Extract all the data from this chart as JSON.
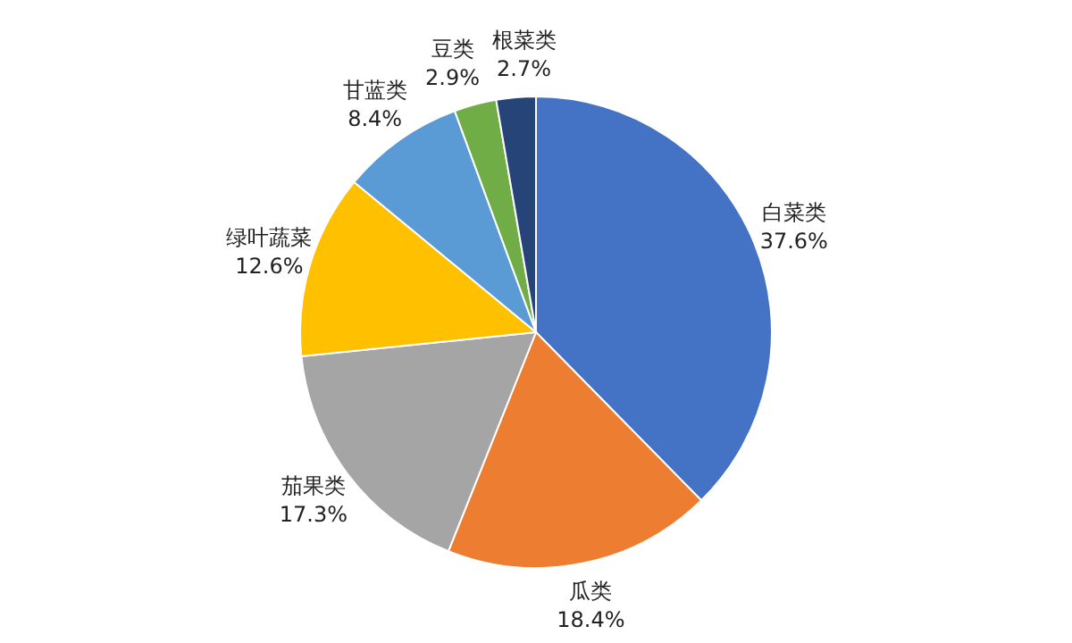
{
  "chart_data": {
    "type": "pie",
    "categories": [
      "白菜类",
      "瓜类",
      "茄果类",
      "绿叶蔬菜",
      "甘蓝类",
      "豆类",
      "根菜类"
    ],
    "values": [
      37.6,
      18.4,
      17.3,
      12.6,
      8.4,
      2.9,
      2.7
    ],
    "value_labels": [
      "37.6%",
      "18.4%",
      "17.3%",
      "12.6%",
      "8.4%",
      "2.9%",
      "2.7%"
    ],
    "colors": [
      "#4472c4",
      "#ed7d31",
      "#a5a5a5",
      "#ffc000",
      "#5b9bd5",
      "#70ad47",
      "#264478"
    ]
  }
}
